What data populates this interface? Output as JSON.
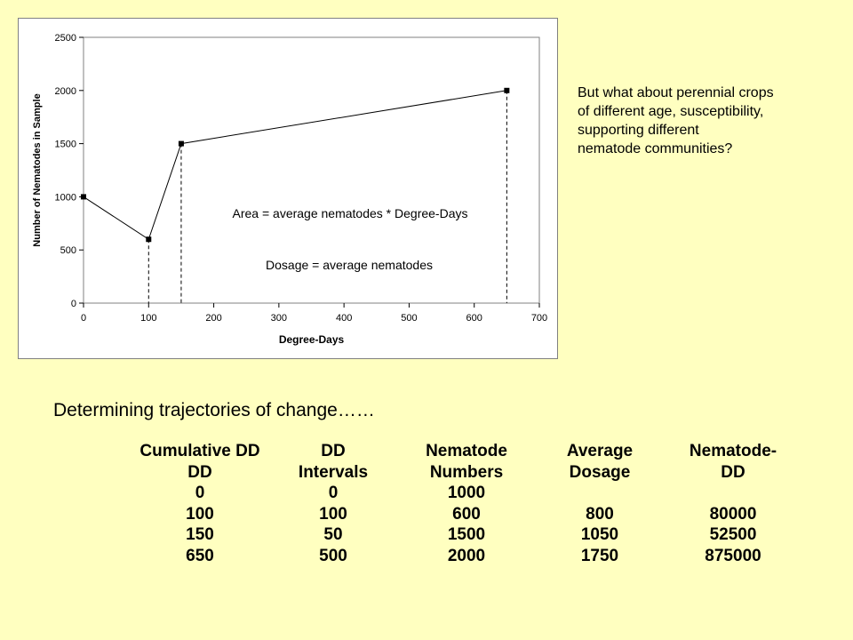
{
  "chart_data": {
    "type": "line",
    "title": "",
    "xlabel": "Degree-Days",
    "ylabel": "Number of Nematodes in Sample",
    "xlim": [
      0,
      700
    ],
    "ylim": [
      0,
      2500
    ],
    "x_ticks": [
      0,
      100,
      200,
      300,
      400,
      500,
      600,
      700
    ],
    "y_ticks": [
      0,
      500,
      1000,
      1500,
      2000,
      2500
    ],
    "grid": false,
    "legend": "none",
    "series": [
      {
        "x": [
          0,
          100,
          150,
          650
        ],
        "y": [
          1000,
          600,
          1500,
          2000
        ],
        "color": "#000000",
        "marker": "square"
      }
    ],
    "dashed_drop_lines_x": [
      100,
      150,
      650
    ],
    "annotations": [
      {
        "id": "area",
        "text": "Area = average nematodes * Degree-Days"
      },
      {
        "id": "dosage",
        "text": "Dosage = average nematodes"
      }
    ]
  },
  "side_note": {
    "lines": [
      "But what about perennial crops",
      "of different age, susceptibility,",
      "supporting different",
      "nematode communities?"
    ]
  },
  "heading": "Determining trajectories of change……",
  "table": {
    "header_rows": [
      [
        "Cumulative DD",
        "DD",
        "Nematode",
        "Average",
        "Nematode-"
      ],
      [
        "DD",
        "Intervals",
        "Numbers",
        "Dosage",
        "DD"
      ]
    ],
    "rows": [
      [
        "0",
        "0",
        "1000",
        "",
        ""
      ],
      [
        "100",
        "100",
        "600",
        "800",
        "80000"
      ],
      [
        "150",
        "50",
        "1500",
        "1050",
        "52500"
      ],
      [
        "650",
        "500",
        "2000",
        "1750",
        "875000"
      ]
    ]
  }
}
